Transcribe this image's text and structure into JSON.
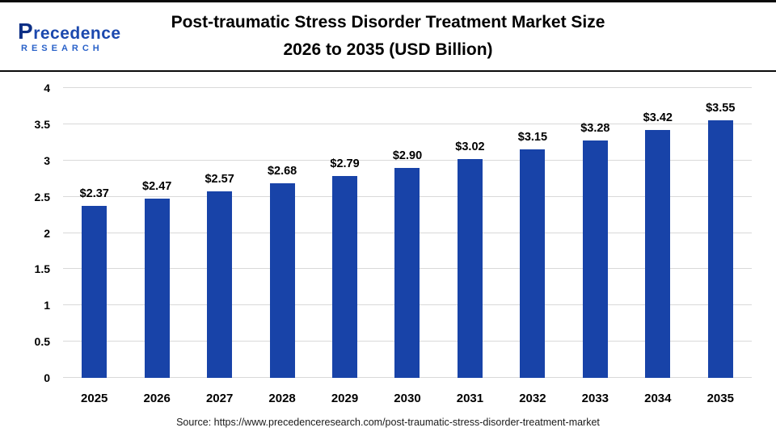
{
  "header": {
    "logo": {
      "name": "Precedence",
      "subtitle": "RESEARCH"
    },
    "title_line1": "Post-traumatic Stress Disorder Treatment Market Size",
    "title_line2": "2026 to 2035 (USD Billion)"
  },
  "source": "Source: https://www.precedenceresearch.com/post-traumatic-stress-disorder-treatment-market",
  "colors": {
    "bar": "#1843A8",
    "grid": "#D9D9D9",
    "logo_primary": "#1C49AE",
    "logo_secondary": "#2A62C9",
    "title_text": "#000000"
  },
  "chart_data": {
    "type": "bar",
    "title": "Post-traumatic Stress Disorder Treatment Market Size 2026 to 2035 (USD Billion)",
    "categories": [
      "2025",
      "2026",
      "2027",
      "2028",
      "2029",
      "2030",
      "2031",
      "2032",
      "2033",
      "2034",
      "2035"
    ],
    "values": [
      2.37,
      2.47,
      2.57,
      2.68,
      2.79,
      2.9,
      3.02,
      3.15,
      3.28,
      3.42,
      3.55
    ],
    "value_labels": [
      "$2.37",
      "$2.47",
      "$2.57",
      "$2.68",
      "$2.79",
      "$2.90",
      "$3.02",
      "$3.15",
      "$3.28",
      "$3.42",
      "$3.55"
    ],
    "xlabel": "",
    "ylabel": "",
    "ylim": [
      0,
      4
    ],
    "yticks": [
      0,
      0.5,
      1,
      1.5,
      2,
      2.5,
      3,
      3.5,
      4
    ],
    "grid": true,
    "legend": "none"
  }
}
